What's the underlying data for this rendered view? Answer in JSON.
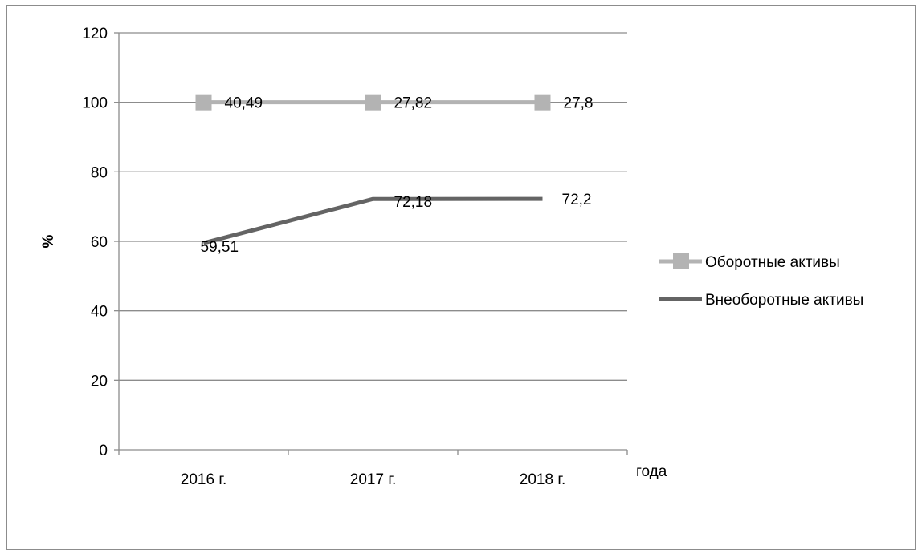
{
  "chart_data": {
    "type": "line",
    "categories": [
      "2016 г.",
      "2017 г.",
      "2018 г."
    ],
    "series": [
      {
        "name": "Оборотные активы",
        "values": [
          100,
          100,
          100
        ],
        "labels": [
          "40,49",
          "27,82",
          "27,8"
        ],
        "color": "#b3b3b3",
        "marker": "square"
      },
      {
        "name": "Внеоборотные активы",
        "values": [
          59.51,
          72.18,
          72.2
        ],
        "labels": [
          "59,51",
          "72,18",
          "72,2"
        ],
        "color": "#646464",
        "marker": "none"
      }
    ],
    "ylabel": "%",
    "xlabel": "года",
    "ylim": [
      0,
      120
    ],
    "yticks": [
      "0",
      "20",
      "40",
      "60",
      "80",
      "100",
      "120"
    ],
    "grid": true,
    "legend": "right"
  }
}
